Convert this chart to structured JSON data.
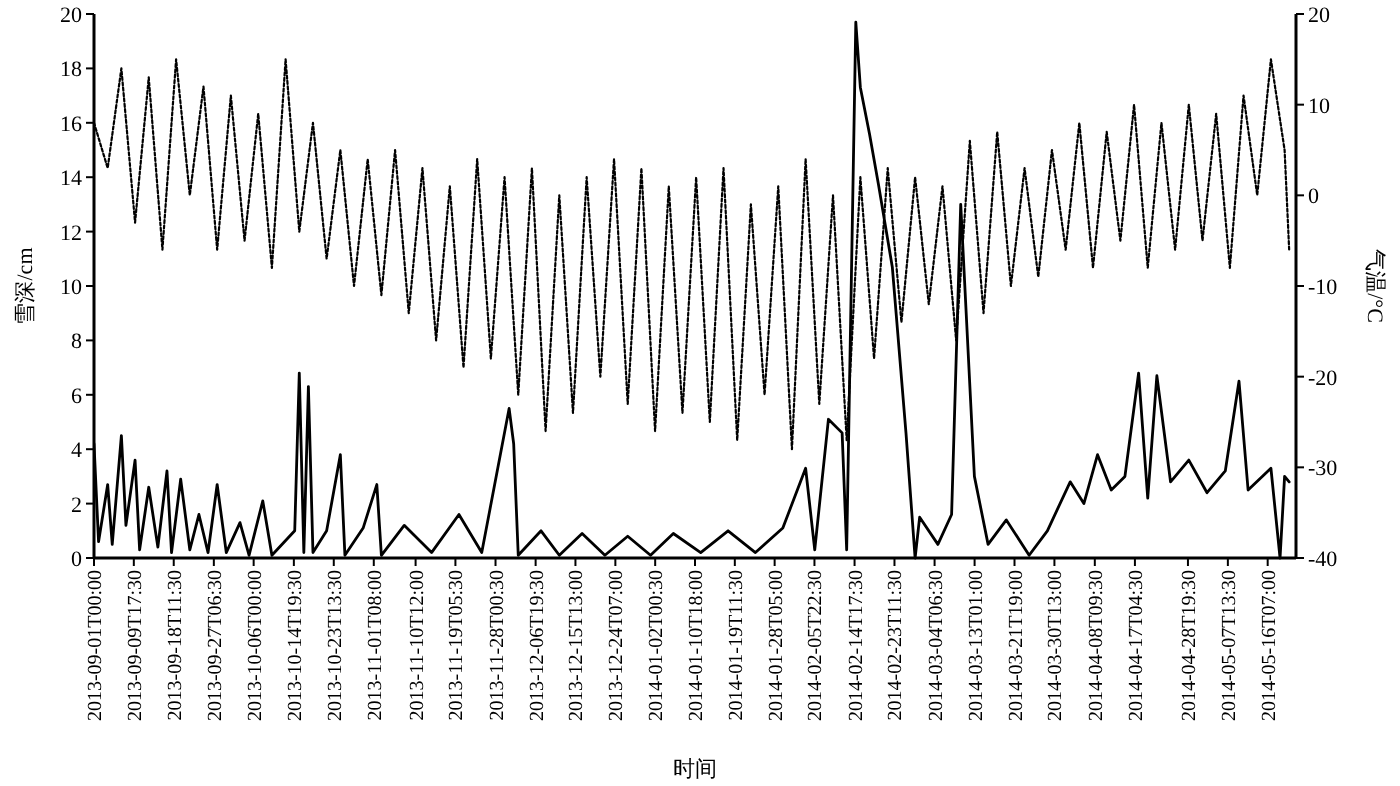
{
  "chart_data": {
    "type": "line",
    "xlabel": "时间",
    "ylabel": "雪深/cm",
    "y2label": "气温/°C",
    "xlim": [
      "2013-09-01T00:00",
      "2014-05-22T12:00"
    ],
    "ylim": [
      0,
      20
    ],
    "yticks": [
      0,
      2,
      4,
      6,
      8,
      10,
      12,
      14,
      16,
      18,
      20
    ],
    "y2lim": [
      -40,
      20
    ],
    "y2ticks": [
      -40,
      -30,
      -20,
      -10,
      0,
      10,
      20
    ],
    "xticks": [
      {
        "value": "2013-09-01T00:00",
        "label": "2013-09-01T00:00"
      },
      {
        "value": "2013-09-09T17:30",
        "label": "2013-09-09T17:30"
      },
      {
        "value": "2013-09-18T11:30",
        "label": "2013-09-18T11:30"
      },
      {
        "value": "2013-09-27T06:30",
        "label": "2013-09-27T06:30"
      },
      {
        "value": "2013-10-06T00:00",
        "label": "2013-10-06T00:00"
      },
      {
        "value": "2013-10-14T19:30",
        "label": "2013-10-14T19:30"
      },
      {
        "value": "2013-10-23T13:30",
        "label": "2013-10-23T13:30"
      },
      {
        "value": "2013-11-01T08:00",
        "label": "2013-11-01T08:00"
      },
      {
        "value": "2013-11-10T12:00",
        "label": "2013-11-10T12:00"
      },
      {
        "value": "2013-11-19T05:30",
        "label": "2013-11-19T05:30"
      },
      {
        "value": "2013-11-28T00:30",
        "label": "2013-11-28T00:30"
      },
      {
        "value": "2013-12-06T19:30",
        "label": "2013-12-06T19:30"
      },
      {
        "value": "2013-12-15T13:00",
        "label": "2013-12-15T13:00"
      },
      {
        "value": "2013-12-24T07:00",
        "label": "2013-12-24T07:00"
      },
      {
        "value": "2014-01-02T00:30",
        "label": "2014-01-02T00:30"
      },
      {
        "value": "2014-01-10T18:00",
        "label": "2014-01-10T18:00"
      },
      {
        "value": "2014-01-19T11:30",
        "label": "2014-01-19T11:30"
      },
      {
        "value": "2014-01-28T05:00",
        "label": "2014-01-28T05:00"
      },
      {
        "value": "2014-02-05T22:30",
        "label": "2014-02-05T22:30"
      },
      {
        "value": "2014-02-14T17:30",
        "label": "2014-02-14T17:30"
      },
      {
        "value": "2014-02-23T11:30",
        "label": "2014-02-23T11:30"
      },
      {
        "value": "2014-03-04T06:30",
        "label": "2014-03-04T06:30"
      },
      {
        "value": "2014-03-13T01:00",
        "label": "2014-03-13T01:00"
      },
      {
        "value": "2014-03-21T19:00",
        "label": "2014-03-21T19:00"
      },
      {
        "value": "2014-03-30T13:00",
        "label": "2014-03-30T13:00"
      },
      {
        "value": "2014-04-08T09:30",
        "label": "2014-04-08T09:30"
      },
      {
        "value": "2014-04-17T04:30",
        "label": "2014-04-17T04:30"
      },
      {
        "value": "2014-04-28T19:30",
        "label": "2014-04-28T19:30"
      },
      {
        "value": "2014-05-07T13:30",
        "label": "2014-05-07T13:30"
      },
      {
        "value": "2014-05-16T07:00",
        "label": "2014-05-16T07:00"
      }
    ],
    "series": [
      {
        "color": "#000000",
        "line_style": "dotted",
        "axis": "y2",
        "x": [
          "2013-09-01",
          "2013-09-04",
          "2013-09-07",
          "2013-09-10",
          "2013-09-13",
          "2013-09-16",
          "2013-09-19",
          "2013-09-22",
          "2013-09-25",
          "2013-09-28",
          "2013-10-01",
          "2013-10-04",
          "2013-10-07",
          "2013-10-10",
          "2013-10-13",
          "2013-10-16",
          "2013-10-19",
          "2013-10-22",
          "2013-10-25",
          "2013-10-28",
          "2013-10-31",
          "2013-11-03",
          "2013-11-06",
          "2013-11-09",
          "2013-11-12",
          "2013-11-15",
          "2013-11-18",
          "2013-11-21",
          "2013-11-24",
          "2013-11-27",
          "2013-11-30",
          "2013-12-03",
          "2013-12-06",
          "2013-12-09",
          "2013-12-12",
          "2013-12-15",
          "2013-12-18",
          "2013-12-21",
          "2013-12-24",
          "2013-12-27",
          "2013-12-30",
          "2014-01-02",
          "2014-01-05",
          "2014-01-08",
          "2014-01-11",
          "2014-01-14",
          "2014-01-17",
          "2014-01-20",
          "2014-01-23",
          "2014-01-26",
          "2014-01-29",
          "2014-02-01",
          "2014-02-04",
          "2014-02-07",
          "2014-02-10",
          "2014-02-13",
          "2014-02-16",
          "2014-02-19",
          "2014-02-22",
          "2014-02-25",
          "2014-02-28",
          "2014-03-03",
          "2014-03-06",
          "2014-03-09",
          "2014-03-12",
          "2014-03-15",
          "2014-03-18",
          "2014-03-21",
          "2014-03-24",
          "2014-03-27",
          "2014-03-30",
          "2014-04-02",
          "2014-04-05",
          "2014-04-08",
          "2014-04-11",
          "2014-04-14",
          "2014-04-17",
          "2014-04-20",
          "2014-04-23",
          "2014-04-26",
          "2014-04-29",
          "2014-05-02",
          "2014-05-05",
          "2014-05-08",
          "2014-05-11",
          "2014-05-14",
          "2014-05-17",
          "2014-05-20",
          "2014-05-21"
        ],
        "values": [
          8,
          3,
          14,
          -3,
          13,
          -6,
          15,
          0,
          12,
          -6,
          11,
          -5,
          9,
          -8,
          15,
          -4,
          8,
          -7,
          5,
          -10,
          4,
          -11,
          5,
          -13,
          3,
          -16,
          1,
          -19,
          4,
          -18,
          2,
          -22,
          3,
          -26,
          0,
          -24,
          2,
          -20,
          4,
          -23,
          3,
          -26,
          1,
          -24,
          2,
          -25,
          3,
          -27,
          -1,
          -22,
          1,
          -28,
          4,
          -23,
          0,
          -27,
          2,
          -18,
          3,
          -14,
          2,
          -12,
          1,
          -16,
          6,
          -13,
          7,
          -10,
          3,
          -9,
          5,
          -6,
          8,
          -8,
          7,
          -5,
          10,
          -8,
          8,
          -6,
          10,
          -5,
          9,
          -8,
          11,
          0,
          15,
          5,
          -6
        ]
      },
      {
        "color": "#000000",
        "line_style": "solid",
        "axis": "y",
        "x": [
          "2013-09-01",
          "2013-09-02",
          "2013-09-04",
          "2013-09-05",
          "2013-09-07",
          "2013-09-08",
          "2013-09-10",
          "2013-09-11",
          "2013-09-13",
          "2013-09-15",
          "2013-09-17",
          "2013-09-18",
          "2013-09-20",
          "2013-09-22",
          "2013-09-24",
          "2013-09-26",
          "2013-09-28",
          "2013-09-30",
          "2013-10-03",
          "2013-10-05",
          "2013-10-08",
          "2013-10-10",
          "2013-10-15",
          "2013-10-16",
          "2013-10-17",
          "2013-10-18",
          "2013-10-19",
          "2013-10-22",
          "2013-10-25",
          "2013-10-26",
          "2013-10-30",
          "2013-11-02",
          "2013-11-03",
          "2013-11-08",
          "2013-11-14",
          "2013-11-20",
          "2013-11-25",
          "2013-12-01",
          "2013-12-02",
          "2013-12-03",
          "2013-12-08",
          "2013-12-12",
          "2013-12-17",
          "2013-12-22",
          "2013-12-27",
          "2014-01-01",
          "2014-01-06",
          "2014-01-12",
          "2014-01-18",
          "2014-01-24",
          "2014-01-30",
          "2014-02-04",
          "2014-02-06",
          "2014-02-09",
          "2014-02-12",
          "2014-02-13",
          "2014-02-15",
          "2014-02-16",
          "2014-02-18",
          "2014-02-20",
          "2014-02-23",
          "2014-02-26",
          "2014-02-28",
          "2014-03-01",
          "2014-03-05",
          "2014-03-08",
          "2014-03-10",
          "2014-03-13",
          "2014-03-16",
          "2014-03-20",
          "2014-03-25",
          "2014-03-29",
          "2014-04-03",
          "2014-04-06",
          "2014-04-09",
          "2014-04-12",
          "2014-04-15",
          "2014-04-18",
          "2014-04-20",
          "2014-04-22",
          "2014-04-25",
          "2014-04-29",
          "2014-05-03",
          "2014-05-07",
          "2014-05-10",
          "2014-05-12",
          "2014-05-17",
          "2014-05-19",
          "2014-05-20",
          "2014-05-21"
        ],
        "values": [
          4.2,
          0.6,
          2.7,
          0.5,
          4.5,
          1.2,
          3.6,
          0.3,
          2.6,
          0.4,
          3.2,
          0.2,
          2.9,
          0.3,
          1.6,
          0.2,
          2.7,
          0.2,
          1.3,
          0.1,
          2.1,
          0.1,
          1.0,
          6.8,
          0.2,
          6.3,
          0.2,
          1.0,
          3.8,
          0.1,
          1.1,
          2.7,
          0.1,
          1.2,
          0.2,
          1.6,
          0.2,
          5.5,
          4.2,
          0.1,
          1.0,
          0.1,
          0.9,
          0.1,
          0.8,
          0.1,
          0.9,
          0.2,
          1.0,
          0.2,
          1.1,
          3.3,
          0.3,
          5.1,
          4.6,
          0.3,
          19.7,
          17.3,
          15.6,
          13.7,
          10.7,
          4.6,
          0.0,
          1.5,
          0.5,
          1.6,
          13.0,
          3.0,
          0.5,
          1.4,
          0.1,
          1.0,
          2.8,
          2.0,
          3.8,
          2.5,
          3.0,
          6.8,
          2.2,
          6.7,
          2.8,
          3.6,
          2.4,
          3.2,
          6.5,
          2.5,
          3.3,
          0.0,
          3.0,
          2.8
        ]
      }
    ]
  }
}
